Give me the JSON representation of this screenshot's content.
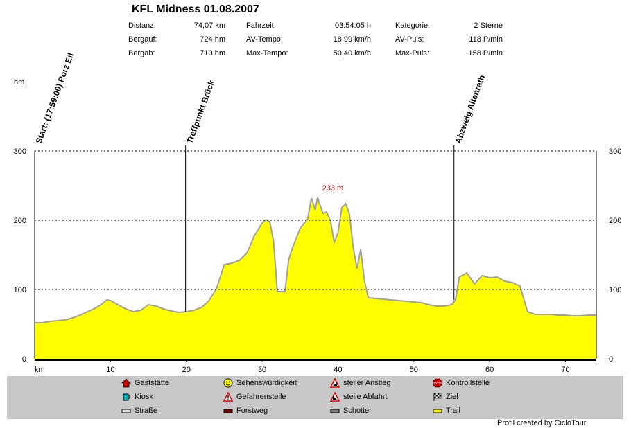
{
  "header": {
    "title": "KFL Midness 01.08.2007",
    "stats": [
      {
        "label": "Distanz:",
        "value": "74,07 km"
      },
      {
        "label": "Bergauf:",
        "value": "724 hm"
      },
      {
        "label": "Bergab:",
        "value": "710 hm"
      },
      {
        "label": "Fahrzeit:",
        "value": "03:54:05 h"
      },
      {
        "label": "AV-Tempo:",
        "value": "18,99 km/h"
      },
      {
        "label": "Max-Tempo:",
        "value": "50,40 km/h"
      },
      {
        "label": "Kategorie:",
        "value": "2 Sterne"
      },
      {
        "label": "AV-Puls:",
        "value": "118 P/min"
      },
      {
        "label": "Max-Puls:",
        "value": "158 P/min"
      }
    ]
  },
  "chart_data": {
    "type": "area",
    "ylabel": "hm",
    "xlabel": "km",
    "xlim": [
      0,
      74.07
    ],
    "ylim": [
      0,
      300
    ],
    "yticks": [
      0,
      100,
      200,
      300
    ],
    "xticks": [
      10,
      20,
      30,
      40,
      50,
      60,
      70
    ],
    "grid": "horizontal dotted",
    "max_label": "233 m",
    "max_point": {
      "x": 37.3,
      "y": 233
    },
    "waypoints": [
      {
        "km": 0,
        "label": "Start: (17:59:00) Porz Eil"
      },
      {
        "km": 19.9,
        "label": "Treffpunkt  Brück"
      },
      {
        "km": 55.3,
        "label": "Abzweig Altenrath"
      }
    ],
    "x": [
      0,
      1,
      2,
      3,
      4,
      5,
      6,
      7,
      8,
      9,
      9.5,
      10,
      11,
      12,
      13,
      14,
      15,
      16,
      17,
      18,
      19,
      20,
      21,
      22,
      23,
      24,
      25,
      26,
      27,
      28,
      29,
      30,
      30.5,
      31,
      31.5,
      32,
      33,
      33.5,
      34,
      35,
      36,
      36.5,
      37,
      37.3,
      38,
      38.5,
      39,
      39.5,
      40,
      40.5,
      41,
      41.5,
      42,
      42.5,
      43,
      43.5,
      44,
      45,
      46,
      47,
      48,
      49,
      50,
      51,
      52,
      53,
      54,
      55,
      55.5,
      56,
      57,
      58,
      59,
      60,
      61,
      62,
      63,
      64,
      65,
      66,
      67,
      68,
      69,
      70,
      71,
      72,
      73,
      74.07
    ],
    "y": [
      52,
      52,
      54,
      55,
      56,
      59,
      63,
      68,
      73,
      80,
      85,
      84,
      78,
      72,
      68,
      70,
      78,
      76,
      72,
      69,
      67,
      68,
      70,
      74,
      84,
      102,
      136,
      138,
      142,
      153,
      178,
      196,
      201,
      198,
      170,
      97,
      97,
      143,
      160,
      188,
      202,
      232,
      215,
      233,
      210,
      212,
      200,
      168,
      182,
      218,
      224,
      210,
      162,
      130,
      158,
      112,
      88,
      87,
      86,
      85,
      84,
      83,
      82,
      81,
      78,
      76,
      76,
      78,
      85,
      118,
      124,
      108,
      120,
      117,
      118,
      112,
      110,
      105,
      68,
      64,
      64,
      64,
      63,
      63,
      62,
      62,
      63,
      63
    ]
  },
  "legend": [
    {
      "icon": "house-icon",
      "label": "Gaststätte"
    },
    {
      "icon": "smiley-icon",
      "label": "Sehenswürdigkeit"
    },
    {
      "icon": "climb-warning-icon",
      "label": "steiler Anstieg"
    },
    {
      "icon": "stop-icon",
      "label": "Kontrollstelle"
    },
    {
      "icon": "cup-icon",
      "label": "Kiosk"
    },
    {
      "icon": "danger-icon",
      "label": "Gefahrenstelle"
    },
    {
      "icon": "descent-warning-icon",
      "label": "steile Abfahrt"
    },
    {
      "icon": "finish-flag-icon",
      "label": "Ziel"
    },
    {
      "icon": "road-swatch-icon",
      "label": "Straße"
    },
    {
      "icon": "forest-swatch-icon",
      "label": "Forstweg"
    },
    {
      "icon": "gravel-swatch-icon",
      "label": "Schotter"
    },
    {
      "icon": "trail-swatch-icon",
      "label": "Trail"
    }
  ],
  "credit": "Profil created by CicloTour",
  "colors": {
    "fill": "#ffff00",
    "outline": "#a0a0a0",
    "max_label": "#c00000",
    "legend_bg": "#c8c8c8",
    "surface_trail": "#000000"
  }
}
